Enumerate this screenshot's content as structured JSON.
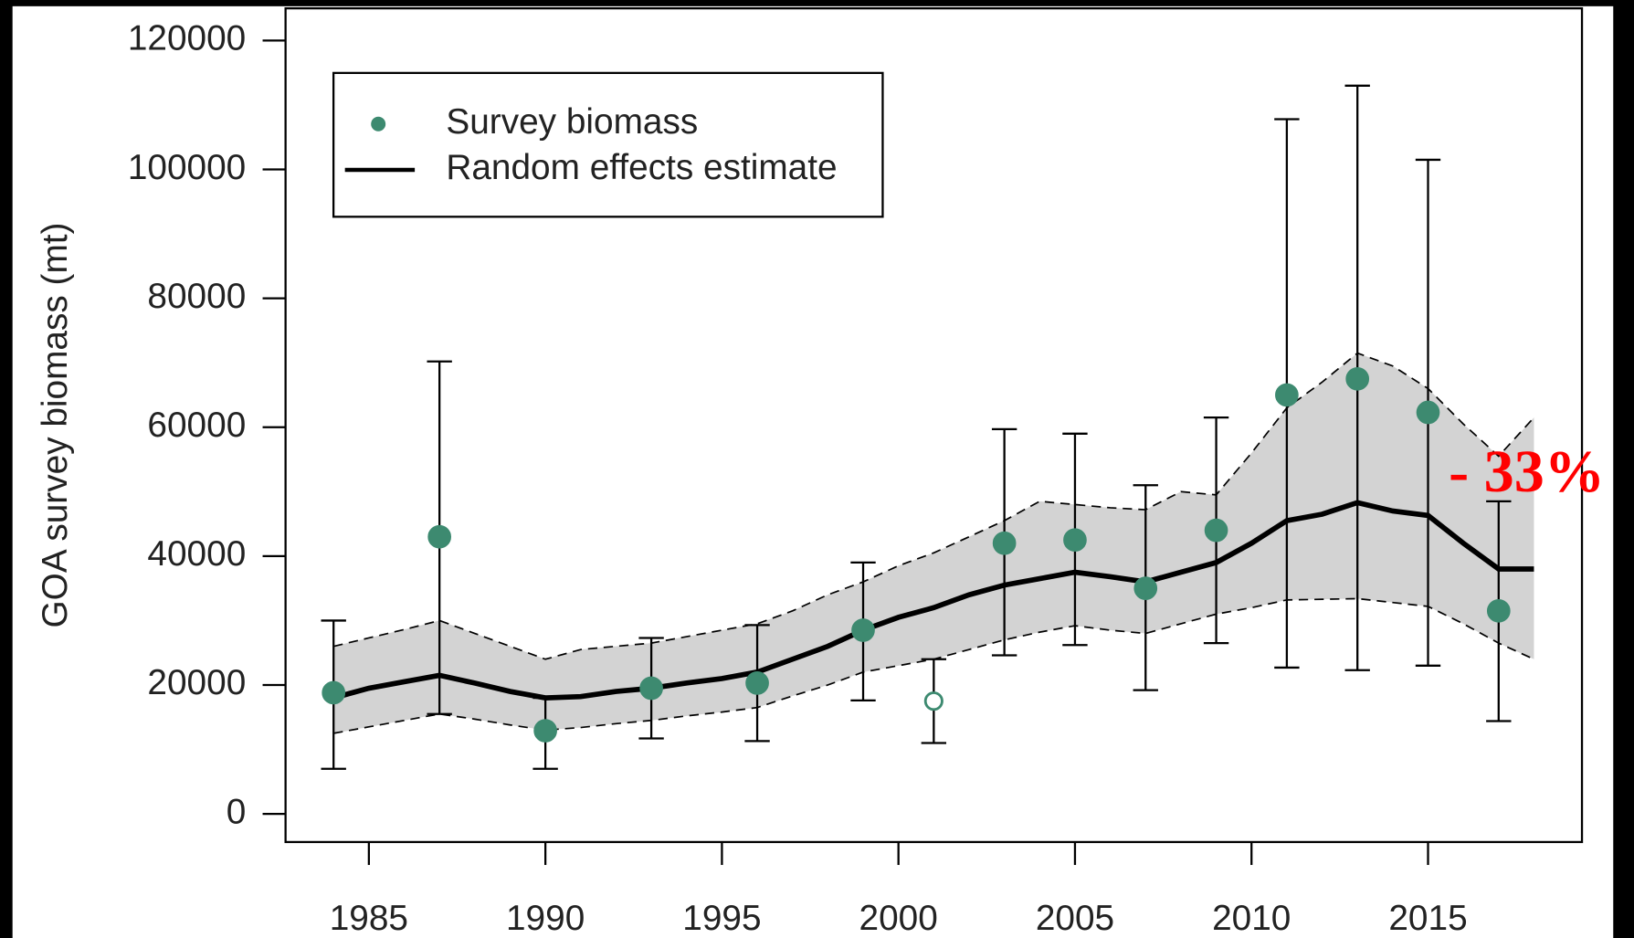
{
  "chart_data": {
    "type": "scatter",
    "y_label": "GOA survey biomass (mt)",
    "xlim": [
      1982.64,
      2019.36
    ],
    "xticks": [
      1985,
      1990,
      1995,
      2000,
      2005,
      2010,
      2015
    ],
    "ylim": [
      -4370,
      125000
    ],
    "yticks": [
      0,
      20000,
      40000,
      60000,
      80000,
      100000,
      120000
    ],
    "legend": "top-left",
    "series": [
      {
        "name": "Survey biomass",
        "type": "scatter",
        "color": "#3d8a70",
        "x": [
          1984,
          1987,
          1990,
          1993,
          1996,
          1999,
          2001,
          2003,
          2005,
          2007,
          2009,
          2011,
          2013,
          2015,
          2017
        ],
        "values": [
          18800,
          43000,
          12900,
          19500,
          20300,
          28500,
          17500,
          42000,
          42500,
          35000,
          44000,
          65000,
          67500,
          62300,
          31500
        ],
        "lower": [
          7000,
          15500,
          7000,
          11700,
          11300,
          17600,
          11000,
          24600,
          26200,
          19200,
          26500,
          22700,
          22300,
          23000,
          14400
        ],
        "upper": [
          30000,
          70200,
          18000,
          27300,
          29300,
          39000,
          24000,
          59700,
          59000,
          51000,
          61500,
          107800,
          113000,
          101500,
          48500
        ],
        "filled": [
          true,
          true,
          true,
          true,
          true,
          true,
          false,
          true,
          true,
          true,
          true,
          true,
          true,
          true,
          true
        ]
      },
      {
        "name": "Random effects estimate",
        "type": "line",
        "color": "#000000",
        "band_color": "#d3d3d3",
        "x": [
          1984,
          1985,
          1986,
          1987,
          1988,
          1989,
          1990,
          1991,
          1992,
          1993,
          1994,
          1995,
          1996,
          1997,
          1998,
          1999,
          2000,
          2001,
          2002,
          2003,
          2004,
          2005,
          2006,
          2007,
          2008,
          2009,
          2010,
          2011,
          2012,
          2013,
          2014,
          2015,
          2016,
          2017,
          2018
        ],
        "values": [
          18000,
          19500,
          20500,
          21500,
          20300,
          19000,
          18000,
          18200,
          19000,
          19500,
          20300,
          21000,
          22000,
          24000,
          26000,
          28500,
          30500,
          32000,
          34000,
          35500,
          36500,
          37500,
          36800,
          36000,
          37500,
          39000,
          42000,
          45500,
          46500,
          48300,
          47000,
          46300,
          42000,
          38000,
          38000
        ],
        "lower": [
          12500,
          13500,
          14500,
          15500,
          14700,
          13800,
          13000,
          13400,
          14000,
          14500,
          15200,
          15800,
          16500,
          18300,
          20000,
          22000,
          23000,
          24000,
          25500,
          27000,
          28200,
          29200,
          28500,
          28000,
          29500,
          31000,
          32000,
          33200,
          33300,
          33400,
          32800,
          32200,
          29500,
          26500,
          24000
        ],
        "upper": [
          26000,
          27300,
          28600,
          30000,
          28000,
          26000,
          24000,
          25500,
          26000,
          26500,
          27500,
          28500,
          29500,
          31500,
          34000,
          36000,
          38500,
          40500,
          43000,
          45500,
          48500,
          48000,
          47500,
          47200,
          50000,
          49500,
          56000,
          63000,
          67000,
          71500,
          69500,
          66000,
          60500,
          55500,
          61500
        ]
      }
    ],
    "annotations": [
      {
        "text": "- 33%",
        "color": "#ff0000"
      }
    ]
  }
}
